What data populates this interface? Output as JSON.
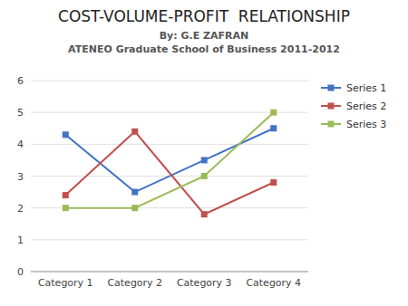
{
  "chart_data": {
    "type": "line",
    "title": "COST-VOLUME-PROFIT  RELATIONSHIP",
    "subtitle": [
      "By: G.E ZAFRAN",
      "ATENEO Graduate School of Business 2011-2012"
    ],
    "categories": [
      "Category 1",
      "Category 2",
      "Category 3",
      "Category 4"
    ],
    "series": [
      {
        "name": "Series 1",
        "color": "#4472C4",
        "values": [
          4.3,
          2.5,
          3.5,
          4.5
        ]
      },
      {
        "name": "Series 2",
        "color": "#C0504D",
        "values": [
          2.4,
          4.4,
          1.8,
          2.8
        ]
      },
      {
        "name": "Series 3",
        "color": "#9BBB59",
        "values": [
          2.0,
          2.0,
          3.0,
          5.0
        ]
      }
    ],
    "ylim": [
      0,
      6
    ],
    "yticks": [
      0,
      1,
      2,
      3,
      4,
      5,
      6
    ],
    "grid": true,
    "legend": "upper-right",
    "marker": "square"
  }
}
